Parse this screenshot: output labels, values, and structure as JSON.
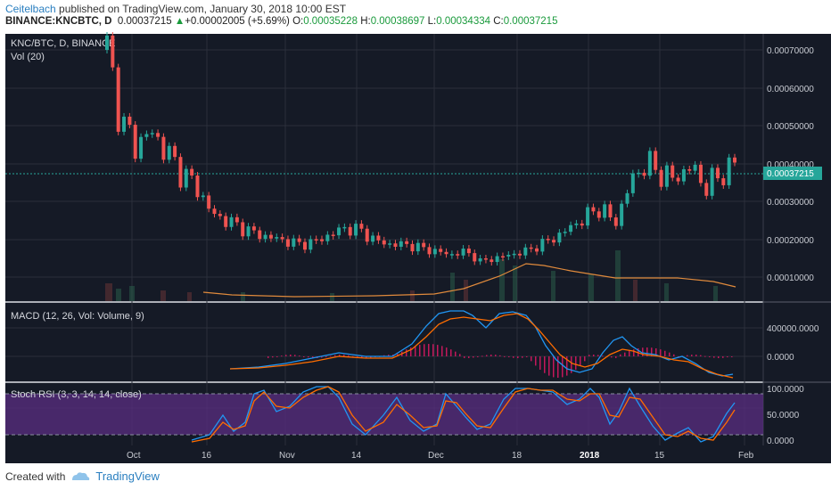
{
  "header": {
    "user": "Ceitelbach",
    "published_text": " published on TradingView.com, January 30, 2018 10:00 EST",
    "symbol": "BINANCE:KNCBTC, D",
    "last": "0.00037215",
    "arrow": "▲",
    "change": "+0.00002005 (+5.69%)",
    "o_label": "O:",
    "o": "0.00035228",
    "h_label": "H:",
    "h": "0.00038697",
    "l_label": "L:",
    "l": "0.00034334",
    "c_label": "C:",
    "c": "0.00037215"
  },
  "main_pane": {
    "title": "KNC/BTC, D, BINANCE",
    "volume_label": "Vol (20)",
    "price_axis": [
      "0.00070000",
      "0.00060000",
      "0.00050000",
      "0.00040000",
      "0.00030000",
      "0.00020000",
      "0.00010000"
    ],
    "current_price": "0.00037215"
  },
  "macd_pane": {
    "title": "MACD (12, 26, Vol: Volume, 9)",
    "axis": [
      "400000.0000",
      "0.0000"
    ]
  },
  "stoch_pane": {
    "title": "Stoch RSI (3, 3, 14, 14, close)",
    "axis": [
      "100.0000",
      "50.0000",
      "0.0000"
    ]
  },
  "time_axis": [
    "Oct",
    "16",
    "Nov",
    "14",
    "Dec",
    "18",
    "2018",
    "15",
    "Feb"
  ],
  "footer": {
    "created_with": "Created with",
    "brand": "TradingView"
  },
  "colors": {
    "background": "#151a26",
    "up": "#26a69a",
    "down": "#ef5350",
    "macd_line": "#2196f3",
    "signal_line": "#ff6d00",
    "stoch_band": "#6a2c91",
    "accent": "#2a7fc0"
  },
  "chart_data": {
    "type": "candlestick",
    "title": "KNC/BTC, D, BINANCE",
    "x_labels": [
      "Oct",
      "16",
      "Nov",
      "14",
      "Dec",
      "18",
      "2018",
      "15",
      "Feb"
    ],
    "ylim": [
      0,
      0.0007
    ],
    "series": [
      {
        "name": "close",
        "values": [
          0.0007,
          0.00048,
          0.00042,
          0.00046,
          0.0004,
          0.00034,
          0.0003,
          0.00022,
          0.0002,
          0.00018,
          0.00016,
          0.00015,
          0.00014,
          0.00013,
          0.00014,
          0.00016,
          0.00018,
          0.00017,
          0.00014,
          0.00013,
          0.00013,
          0.00012,
          0.00011,
          0.0001,
          0.00011,
          8e-05,
          9e-05,
          0.0001,
          0.00011,
          0.00013,
          0.00015,
          0.00018,
          0.00021,
          0.00024,
          0.00019,
          0.00031,
          0.00037,
          0.00034,
          0.00032,
          0.00036,
          0.0003,
          0.00033,
          0.00037
        ]
      },
      {
        "name": "volume_ma",
        "values": [
          7e-05,
          7e-05,
          7e-05,
          8e-05,
          8e-05,
          9e-05,
          0.0001,
          0.00013,
          0.00011,
          0.0001,
          8e-05
        ]
      }
    ]
  }
}
